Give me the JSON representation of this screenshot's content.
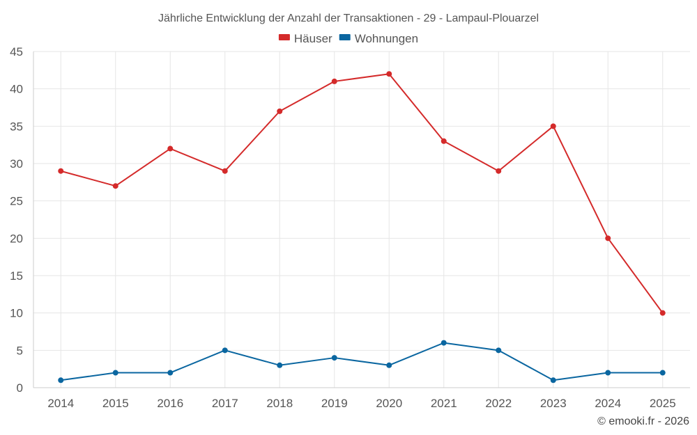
{
  "chart_data": {
    "type": "line",
    "title": "Jährliche Entwicklung der Anzahl der Transaktionen - 29 - Lampaul-Plouarzel",
    "xlabel": "",
    "ylabel": "",
    "categories": [
      "2014",
      "2015",
      "2016",
      "2017",
      "2018",
      "2019",
      "2020",
      "2021",
      "2022",
      "2023",
      "2024",
      "2025"
    ],
    "ylim": [
      0,
      45
    ],
    "yticks": [
      0,
      5,
      10,
      15,
      20,
      25,
      30,
      35,
      40,
      45
    ],
    "grid": true,
    "legend_position": "top-center",
    "series": [
      {
        "name": "Häuser",
        "color": "#d42a2a",
        "values": [
          29,
          27,
          32,
          29,
          37,
          41,
          42,
          33,
          29,
          35,
          20,
          10
        ]
      },
      {
        "name": "Wohnungen",
        "color": "#0a66a0",
        "values": [
          1,
          2,
          2,
          5,
          3,
          4,
          3,
          6,
          5,
          1,
          2,
          2
        ]
      }
    ]
  },
  "credit": "© emooki.fr - 2026"
}
